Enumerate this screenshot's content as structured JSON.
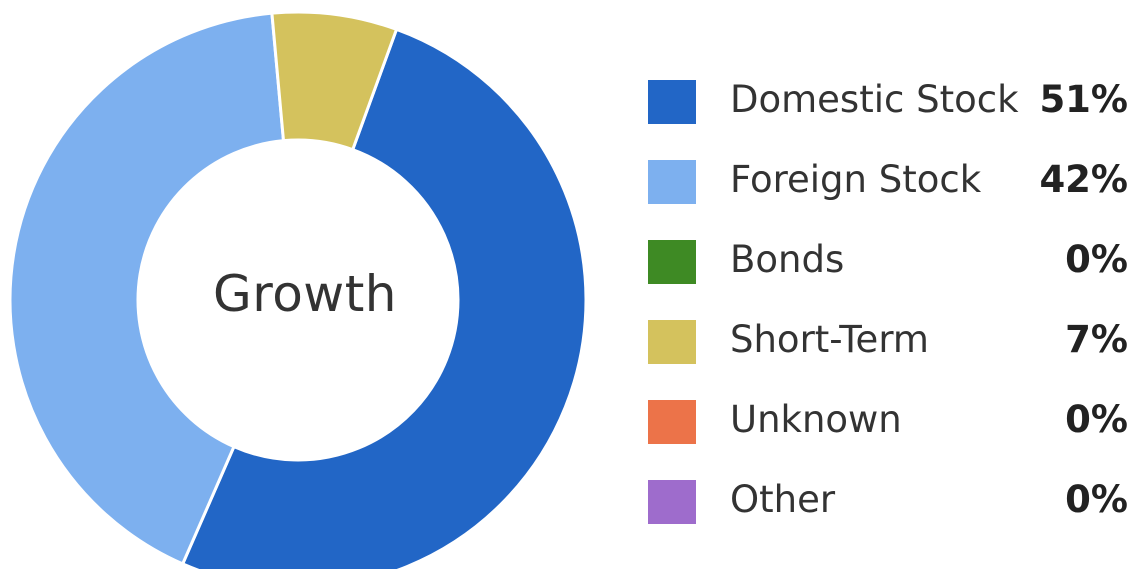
{
  "chart_data": {
    "type": "pie",
    "center_label": "Growth",
    "categories": [
      "Domestic Stock",
      "Foreign Stock",
      "Bonds",
      "Short-Term",
      "Unknown",
      "Other"
    ],
    "values": [
      51,
      42,
      0,
      7,
      0,
      0
    ],
    "value_labels": [
      "51%",
      "42%",
      "0%",
      "7%",
      "0%",
      "0%"
    ],
    "colors": [
      "#2266c6",
      "#7db0ef",
      "#3e8a24",
      "#d4c25d",
      "#ec7349",
      "#9e6ccc"
    ],
    "legend_position": "right"
  }
}
